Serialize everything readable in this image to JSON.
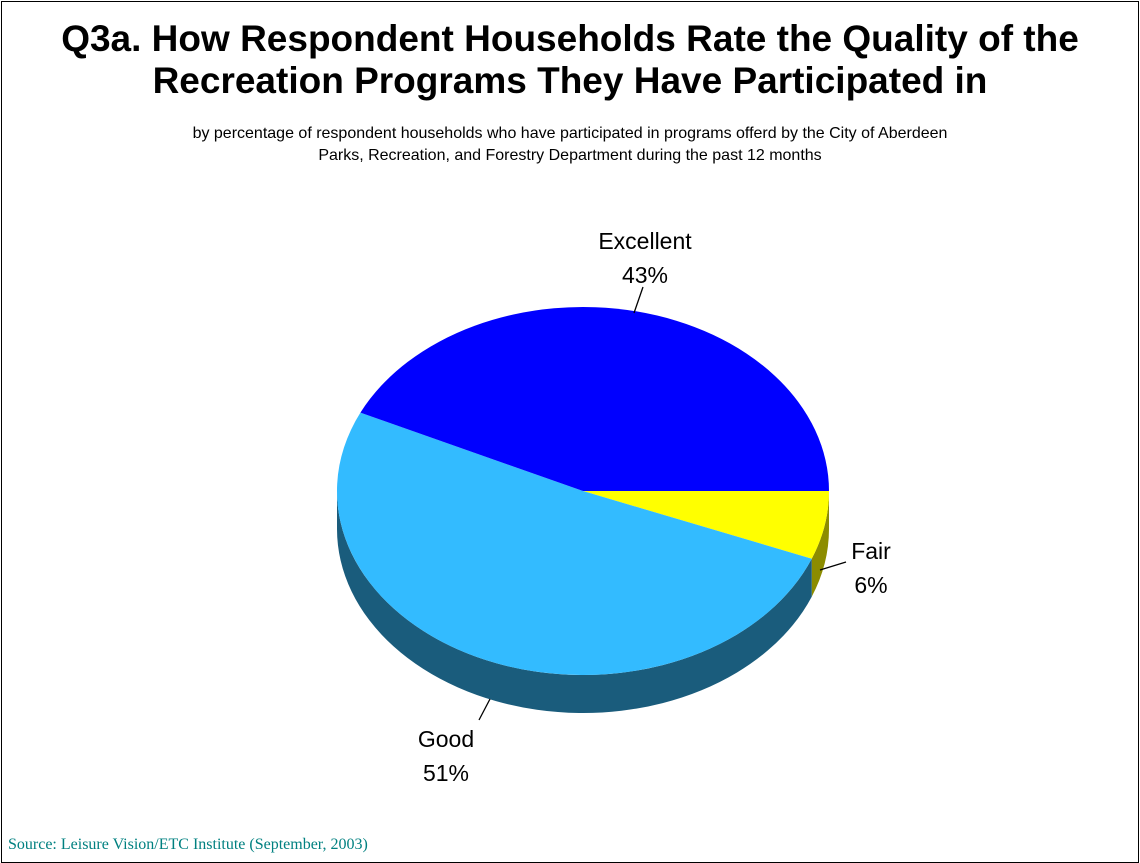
{
  "page": {
    "title_line1": "Q3a.  How Respondent Households Rate the Quality of the",
    "title_line2": "Recreation Programs They Have Participated in",
    "subtitle_line1": "by percentage of respondent households who have participated in programs offerd by the City of Aberdeen",
    "subtitle_line2": "Parks, Recreation, and Forestry Department during the past 12 months",
    "source": "Source:  Leisure Vision/ETC Institute (September, 2003)"
  },
  "chart_data": {
    "type": "pie",
    "title": "Q3a.  How Respondent Households Rate the Quality of the Recreation Programs They Have Participated in",
    "subtitle": "by percentage of respondent households who have participated in programs offerd by the City of Aberdeen Parks, Recreation, and Forestry Department during the past 12 months",
    "categories": [
      "Excellent",
      "Good",
      "Fair"
    ],
    "values": [
      43,
      51,
      6
    ],
    "labels": [
      "43%",
      "51%",
      "6%"
    ],
    "colors": [
      "#0000FF",
      "#33BBFF",
      "#FFFF00"
    ],
    "side_colors": [
      "#00007A",
      "#1A5C7C",
      "#8C8C00"
    ],
    "style": "3d-tilted"
  }
}
